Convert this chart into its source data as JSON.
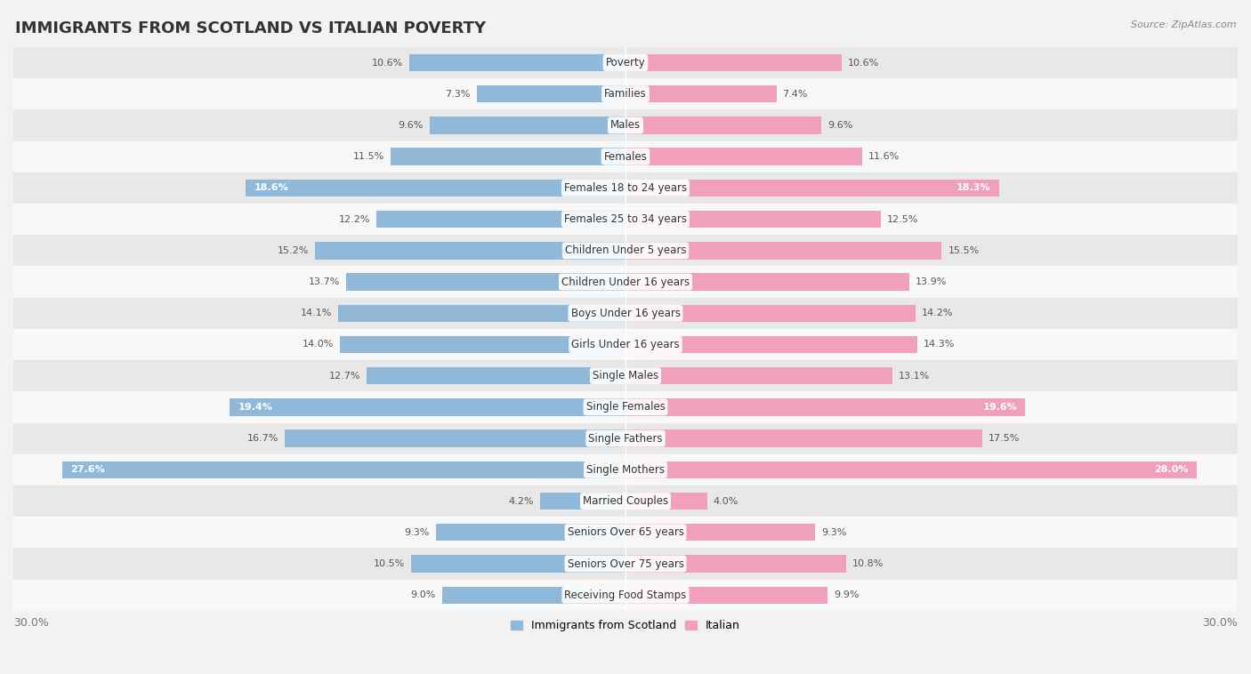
{
  "title": "IMMIGRANTS FROM SCOTLAND VS ITALIAN POVERTY",
  "source": "Source: ZipAtlas.com",
  "categories": [
    "Poverty",
    "Families",
    "Males",
    "Females",
    "Females 18 to 24 years",
    "Females 25 to 34 years",
    "Children Under 5 years",
    "Children Under 16 years",
    "Boys Under 16 years",
    "Girls Under 16 years",
    "Single Males",
    "Single Females",
    "Single Fathers",
    "Single Mothers",
    "Married Couples",
    "Seniors Over 65 years",
    "Seniors Over 75 years",
    "Receiving Food Stamps"
  ],
  "scotland_values": [
    10.6,
    7.3,
    9.6,
    11.5,
    18.6,
    12.2,
    15.2,
    13.7,
    14.1,
    14.0,
    12.7,
    19.4,
    16.7,
    27.6,
    4.2,
    9.3,
    10.5,
    9.0
  ],
  "italian_values": [
    10.6,
    7.4,
    9.6,
    11.6,
    18.3,
    12.5,
    15.5,
    13.9,
    14.2,
    14.3,
    13.1,
    19.6,
    17.5,
    28.0,
    4.0,
    9.3,
    10.8,
    9.9
  ],
  "scotland_color": "#90b8d8",
  "italian_color": "#f0a0b8",
  "scotland_label": "Immigrants from Scotland",
  "italian_label": "Italian",
  "bg_color": "#f2f2f2",
  "row_colors": [
    "#e8e8e8",
    "#f8f8f8"
  ],
  "axis_limit": 30.0,
  "bar_height": 0.55,
  "title_fontsize": 13,
  "cat_fontsize": 8.5,
  "tick_fontsize": 9,
  "value_fontsize": 8,
  "highlighted_rows": [
    4,
    11,
    13
  ],
  "value_dark": "#555555",
  "value_white": "#ffffff"
}
